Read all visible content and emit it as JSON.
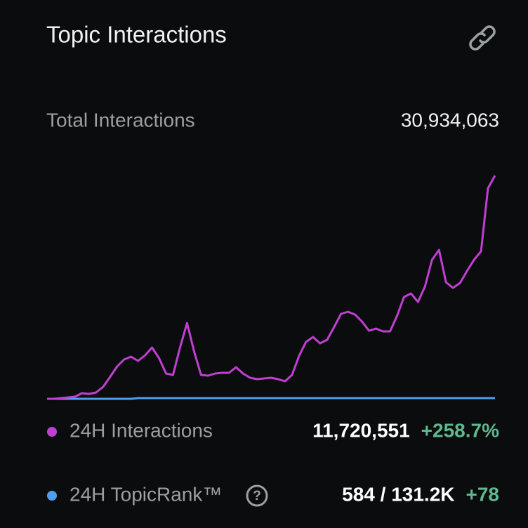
{
  "header": {
    "title": "Topic Interactions"
  },
  "total": {
    "label": "Total Interactions",
    "value": "30,934,063"
  },
  "chart_data": {
    "type": "line",
    "series": [
      {
        "name": "24H Interactions",
        "color": "#c03fd1",
        "stat": "11,720,551",
        "change": "+258.7%",
        "values": [
          0,
          0,
          1,
          2,
          3,
          8,
          7,
          9,
          17,
          31,
          46,
          56,
          60,
          54,
          62,
          73,
          58,
          36,
          34,
          73,
          108,
          68,
          34,
          33,
          36,
          37,
          37,
          45,
          36,
          30,
          28,
          29,
          30,
          28,
          25,
          34,
          61,
          81,
          88,
          79,
          84,
          102,
          121,
          124,
          120,
          110,
          97,
          100,
          96,
          96,
          118,
          145,
          150,
          138,
          160,
          198,
          212,
          166,
          158,
          165,
          182,
          198,
          210,
          300,
          318
        ]
      },
      {
        "name": "24H TopicRank™",
        "color": "#4f9df0",
        "stat": "584 / 131.2K",
        "change": "+78",
        "values": [
          0,
          0,
          0,
          0,
          0,
          0,
          0,
          0,
          0,
          0,
          0,
          0,
          0,
          1,
          1,
          1,
          1,
          1,
          1,
          1,
          1,
          1,
          1,
          1,
          1,
          1,
          1,
          1,
          1,
          1,
          1,
          1,
          1,
          1,
          1,
          1,
          1,
          1,
          1,
          1,
          1,
          1,
          1,
          1,
          1,
          1,
          1,
          1,
          1,
          1,
          1,
          1,
          1,
          1,
          1,
          1,
          1,
          1,
          1,
          1,
          1,
          1,
          1,
          1,
          1
        ]
      }
    ]
  }
}
